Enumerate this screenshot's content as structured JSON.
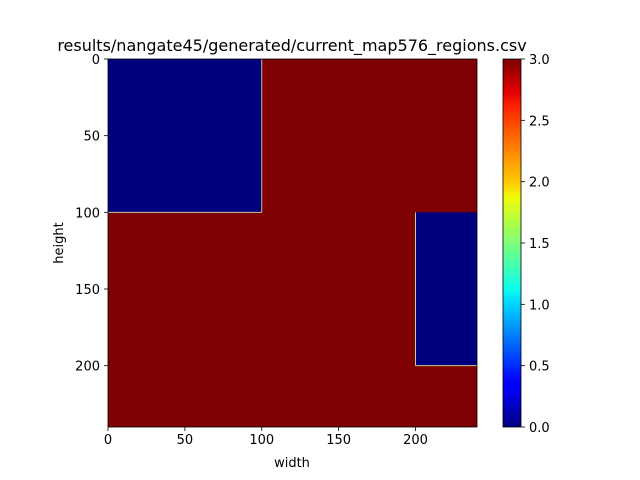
{
  "chart_data": {
    "type": "heatmap",
    "title": "results/nangate45/generated/current_map576_regions.csv",
    "xlabel": "width",
    "ylabel": "height",
    "x_ticks": [
      0,
      50,
      100,
      150,
      200
    ],
    "y_ticks": [
      0,
      50,
      100,
      150,
      200
    ],
    "xlim": [
      0,
      240
    ],
    "ylim": [
      240,
      0
    ],
    "colormap": "jet",
    "colorbar": {
      "vmin": 0.0,
      "vmax": 3.0,
      "ticks": [
        "0.0",
        "0.5",
        "1.0",
        "1.5",
        "2.0",
        "2.5",
        "3.0"
      ]
    },
    "background_value": 3.0,
    "regions": [
      {
        "x": [
          0,
          100
        ],
        "y": [
          0,
          100
        ],
        "value": 0.0
      },
      {
        "x": [
          200,
          240
        ],
        "y": [
          100,
          200
        ],
        "value": 0.0
      }
    ],
    "colors": {
      "low": "#00007f",
      "high": "#7f0000"
    }
  }
}
